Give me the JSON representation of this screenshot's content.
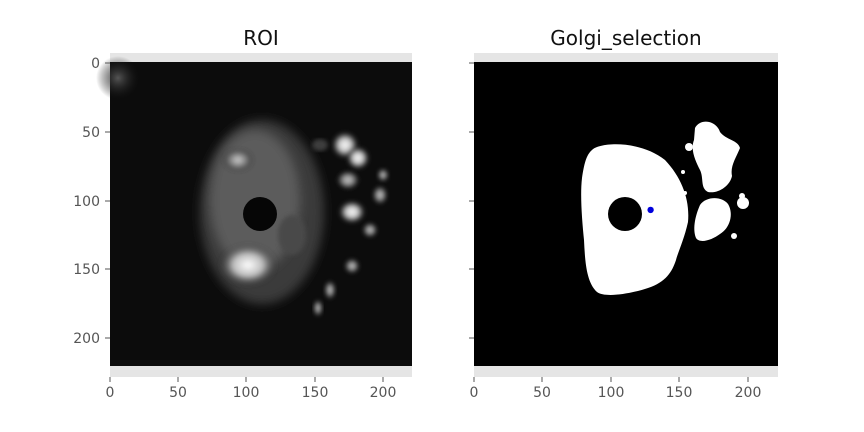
{
  "figure": {
    "panels": [
      {
        "title": "ROI",
        "x_ticks": [
          "0",
          "50",
          "100",
          "150",
          "200"
        ],
        "y_ticks": [
          "0",
          "50",
          "100",
          "150",
          "200"
        ]
      },
      {
        "title": "Golgi_selection",
        "x_ticks": [
          "0",
          "50",
          "100",
          "150",
          "200"
        ],
        "y_ticks": []
      }
    ],
    "colors": {
      "axes_background": "#e5e5e5",
      "image_background": "#000000",
      "marker": "#0000dd",
      "tick_text": "#555555"
    },
    "image_extent": [
      0,
      222
    ],
    "marker_point": {
      "x": 129,
      "y": 108
    }
  }
}
